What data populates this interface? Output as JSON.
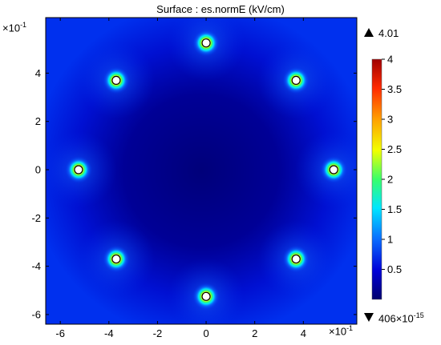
{
  "chart_data": {
    "type": "heatmap",
    "title": "Surface : es.normE (kV/cm)",
    "x_multiplier": "×10",
    "x_multiplier_exp": "-1",
    "y_multiplier": "×10",
    "y_multiplier_exp": "-1",
    "xlim": [
      -6.6,
      6.2
    ],
    "ylim": [
      -6.4,
      6.3
    ],
    "xticks": [
      -6,
      -4,
      -2,
      0,
      2,
      4
    ],
    "yticks": [
      -6,
      -4,
      -2,
      0,
      2,
      4
    ],
    "conductors": [
      {
        "x": 0,
        "y": 5.25
      },
      {
        "x": 3.7,
        "y": 3.7
      },
      {
        "x": 5.25,
        "y": 0
      },
      {
        "x": 3.7,
        "y": -3.7
      },
      {
        "x": 0,
        "y": -5.25
      },
      {
        "x": -3.7,
        "y": -3.7
      },
      {
        "x": -5.25,
        "y": 0
      },
      {
        "x": -3.7,
        "y": 3.7
      }
    ],
    "colorbar": {
      "min": 0,
      "max": 4,
      "ticks": [
        "4",
        "3.5",
        "3",
        "2.5",
        "2",
        "1.5",
        "1",
        "0.5"
      ],
      "max_label": "4.01",
      "min_label": "406×10",
      "min_label_exp": "-15",
      "colors": [
        "#00006e",
        "#0000d8",
        "#0a6cff",
        "#00e6ff",
        "#38ff6a",
        "#f2ff00",
        "#ffa000",
        "#ff2a00",
        "#a00000"
      ]
    }
  }
}
